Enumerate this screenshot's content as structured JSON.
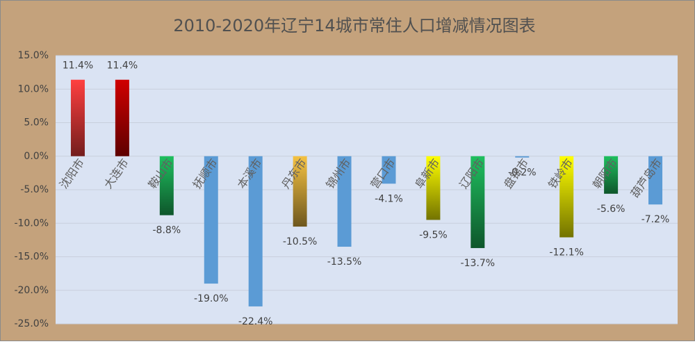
{
  "chart_data": {
    "type": "bar",
    "title": "2010-2020年辽宁14城市常住人口增减情况图表",
    "categories": [
      "沈阳市",
      "大连市",
      "鞍山市",
      "抚顺市",
      "本溪市",
      "丹东市",
      "锦州市",
      "营口市",
      "阜新市",
      "辽阳市",
      "盘锦市",
      "铁岭市",
      "朝阳市",
      "葫芦岛市"
    ],
    "values": [
      11.4,
      11.4,
      -8.8,
      -19.0,
      -22.4,
      -10.5,
      -13.5,
      -4.1,
      -9.5,
      -13.7,
      -0.2,
      -12.1,
      -5.6,
      -7.2
    ],
    "value_labels": [
      "11.4%",
      "11.4%",
      "-8.8%",
      "-19.0%",
      "-22.4%",
      "-10.5%",
      "-13.5%",
      "-4.1%",
      "-9.5%",
      "-13.7%",
      "-0.2%",
      "-12.1%",
      "-5.6%",
      "-7.2%"
    ],
    "colors": [
      "#ff4040",
      "#d00000",
      "#1fbf5f",
      "#5b9bd5",
      "#5b9bd5",
      "#f5c242",
      "#5b9bd5",
      "#5b9bd5",
      "#ffff00",
      "#1fbf5f",
      "#5b9bd5",
      "#ffff00",
      "#1fbf5f",
      "#5b9bd5"
    ],
    "ylim": [
      -25,
      15
    ],
    "yticks": [
      {
        "value": -25,
        "label": "-25.0%"
      },
      {
        "value": -20,
        "label": "-20.0%"
      },
      {
        "value": -15,
        "label": "-15.0%"
      },
      {
        "value": -10,
        "label": "-10.0%"
      },
      {
        "value": -5,
        "label": "-5.0%"
      },
      {
        "value": 0,
        "label": "0.0%"
      },
      {
        "value": 5,
        "label": "5.0%"
      },
      {
        "value": 10,
        "label": "10.0%"
      },
      {
        "value": 15,
        "label": "15.0%"
      }
    ],
    "grid": true
  }
}
